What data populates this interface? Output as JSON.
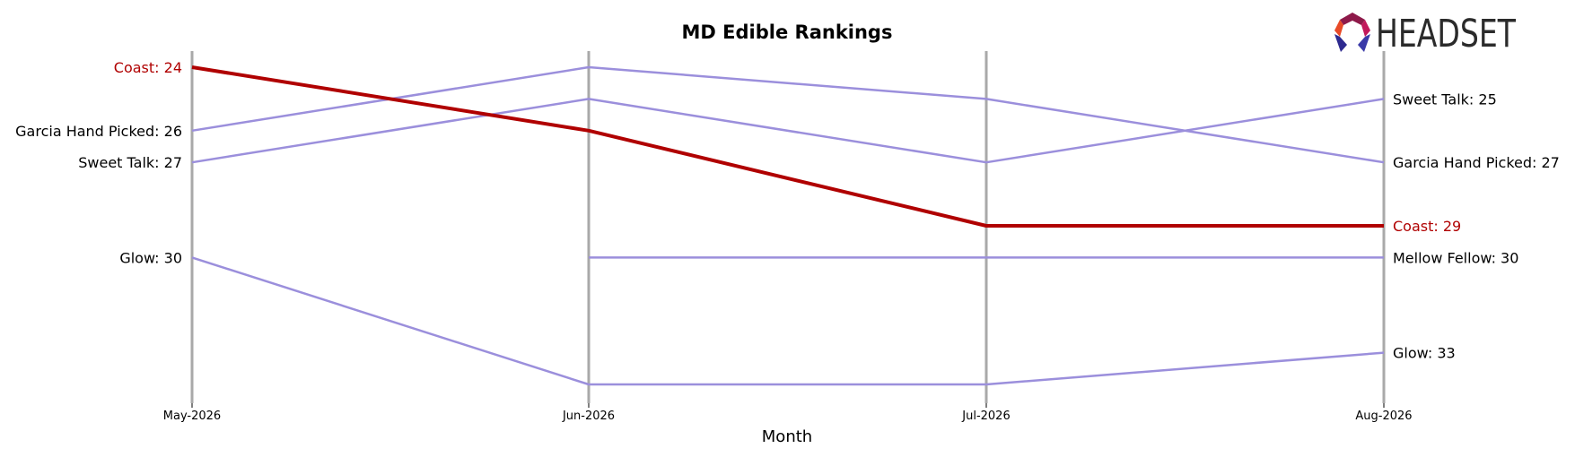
{
  "brand": {
    "logo_text": "HEADSET",
    "logo_colors": [
      "#e84a27",
      "#c2185b",
      "#8e1a4a",
      "#2e2a8f",
      "#3a3aa8"
    ]
  },
  "chart_data": {
    "type": "line",
    "title": "MD Edible Rankings",
    "xlabel": "Month",
    "ylabel": "",
    "categories": [
      "May-2026",
      "Jun-2026",
      "Jul-2026",
      "Aug-2026"
    ],
    "y_axis": {
      "inverted": true,
      "range": [
        24,
        34
      ],
      "tick_labels_shown": false
    },
    "grid": false,
    "colors": {
      "highlight": "#b00000",
      "others": "#9b8fdc",
      "axis_line": "#a9a9a9"
    },
    "series": [
      {
        "name": "Coast",
        "values": [
          24,
          26,
          29,
          29
        ],
        "highlight": true
      },
      {
        "name": "Garcia Hand Picked",
        "values": [
          26,
          24,
          25,
          27
        ],
        "highlight": false
      },
      {
        "name": "Sweet Talk",
        "values": [
          27,
          25,
          27,
          25
        ],
        "highlight": false
      },
      {
        "name": "Glow",
        "values": [
          30,
          34,
          34,
          33
        ],
        "highlight": false
      },
      {
        "name": "Mellow Fellow",
        "values": [
          null,
          30,
          30,
          30
        ],
        "highlight": false
      }
    ],
    "start_labels": [
      {
        "series": "Coast",
        "text": "Coast: 24"
      },
      {
        "series": "Garcia Hand Picked",
        "text": "Garcia Hand Picked: 26"
      },
      {
        "series": "Sweet Talk",
        "text": "Sweet Talk: 27"
      },
      {
        "series": "Glow",
        "text": "Glow: 30"
      }
    ],
    "end_labels": [
      {
        "series": "Sweet Talk",
        "text": "Sweet Talk: 25"
      },
      {
        "series": "Garcia Hand Picked",
        "text": "Garcia Hand Picked: 27"
      },
      {
        "series": "Coast",
        "text": "Coast: 29"
      },
      {
        "series": "Mellow Fellow",
        "text": "Mellow Fellow: 30"
      },
      {
        "series": "Glow",
        "text": "Glow: 33"
      }
    ]
  }
}
